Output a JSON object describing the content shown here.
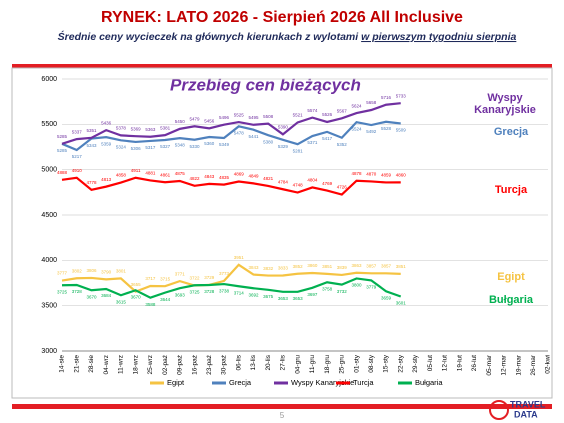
{
  "header": {
    "title": "RYNEK: LATO 2026 - Sierpień 2026 All Inclusive",
    "subtitle": "Średnie ceny wycieczek na głównych kierunkach  z wylotami",
    "subtitle_underlined": "w pierwszym tygodniu sierpnia"
  },
  "chart_data": {
    "type": "line",
    "title": "Przebieg cen bieżących",
    "categories": [
      "14-sie",
      "21-sie",
      "28-sie",
      "04-wrz",
      "11-wrz",
      "18-wrz",
      "25-wrz",
      "02-paź",
      "09-paź",
      "16-paź",
      "23-paź",
      "30-paź",
      "06-lis",
      "13-lis",
      "20-lis",
      "27-lis",
      "04-gru",
      "11-gru",
      "18-gru",
      "25-gru",
      "01-sty",
      "08-sty",
      "15-sty",
      "22-sty",
      "29-sty",
      "05-lut",
      "12-lut",
      "19-lut",
      "26-lut",
      "05-mar",
      "12-mar",
      "19-mar",
      "26-mar",
      "02-kwi"
    ],
    "series": [
      {
        "name": "Egipt",
        "color": "#f5c342",
        "values": [
          3777,
          3802,
          3806,
          3790,
          3801,
          3655,
          3717,
          3715,
          3771,
          3722,
          3729,
          3773,
          3951,
          3843,
          3832,
          3833,
          3852,
          3860,
          3851,
          3839,
          3863,
          3857,
          3857,
          3851,
          null,
          null,
          null,
          null,
          null,
          null,
          null,
          null,
          null,
          null
        ]
      },
      {
        "name": "Grecja",
        "color": "#4f81bd",
        "values": [
          5285,
          5217,
          5343,
          5359,
          5324,
          5306,
          5317,
          5327,
          5348,
          5330,
          5360,
          5349,
          5478,
          5441,
          5380,
          5329,
          5281,
          5371,
          5417,
          5352,
          5524,
          5492,
          5528,
          5509,
          null,
          null,
          null,
          null,
          null,
          null,
          null,
          null,
          null,
          null
        ]
      },
      {
        "name": "Wyspy Kanaryjskie",
        "color": "#7030a0",
        "values": [
          5285,
          5337,
          5351,
          5436,
          5378,
          5369,
          5363,
          5381,
          5450,
          5479,
          5456,
          5496,
          5525,
          5495,
          5508,
          5390,
          5521,
          5574,
          5526,
          5567,
          5624,
          5658,
          5716,
          5733,
          null,
          null,
          null,
          null,
          null,
          null,
          null,
          null,
          null,
          null
        ]
      },
      {
        "name": "Turcja",
        "color": "#ff0000",
        "values": [
          4888,
          4910,
          4778,
          4813,
          4858,
          4911,
          4881,
          4861,
          4875,
          4822,
          4843,
          4835,
          4869,
          4849,
          4821,
          4784,
          4748,
          4804,
          4769,
          4726,
          4878,
          4870,
          4859,
          4860,
          null,
          null,
          null,
          null,
          null,
          null,
          null,
          null,
          null,
          null
        ]
      },
      {
        "name": "Bułgaria",
        "color": "#00b050",
        "values": [
          3725,
          3728,
          3670,
          3684,
          3615,
          3670,
          3588,
          3644,
          3693,
          3725,
          3728,
          3738,
          3714,
          3692,
          3675,
          3653,
          3653,
          3697,
          3758,
          3732,
          3800,
          3779,
          3659,
          3601,
          null,
          null,
          null,
          null,
          null,
          null,
          null,
          null,
          null,
          null
        ]
      }
    ],
    "ylim": [
      3000,
      6000
    ],
    "yticks": [
      3000,
      3500,
      4000,
      4500,
      5000,
      5500,
      6000
    ],
    "grid": true,
    "legend": "bottom"
  },
  "footer": {
    "page": "5",
    "logo_top": "TRAVEL",
    "logo_bottom": "DATA"
  }
}
